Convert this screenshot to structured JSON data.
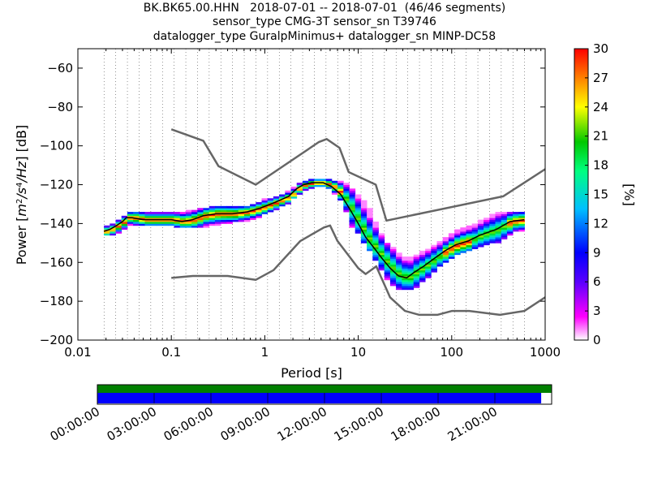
{
  "title": {
    "line1": "BK.BK65.00.HHN   2018-07-01 -- 2018-07-01  (46/46 segments)",
    "line2": "sensor_type CMG-3T sensor_sn T39746",
    "line3": "datalogger_type GuralpMinimus+ datalogger_sn MINP-DC58"
  },
  "chart_data": {
    "type": "heatmap",
    "xlabel": "Period [s]",
    "ylabel_parts": [
      "Power [",
      "m",
      "2",
      "/",
      "s",
      "4",
      "/",
      "Hz",
      "] [dB]"
    ],
    "x_scale": "log",
    "xlim": [
      0.01,
      1000
    ],
    "ylim": [
      -200,
      -50
    ],
    "x_ticks": [
      0.01,
      0.1,
      1,
      10,
      100,
      1000
    ],
    "x_tick_labels": [
      "0.01",
      "0.1",
      "1",
      "10",
      "100",
      "1000"
    ],
    "y_ticks": [
      -200,
      -180,
      -160,
      -140,
      -120,
      -100,
      -80,
      -60
    ],
    "y_tick_labels": [
      "−200",
      "−180",
      "−160",
      "−140",
      "−120",
      "−100",
      "−80",
      "−60"
    ],
    "grid": "dotted vertical at period bins",
    "colorbar": {
      "label": "[%]",
      "range": [
        0,
        30
      ],
      "ticks": [
        "0",
        "3",
        "6",
        "9",
        "12",
        "15",
        "18",
        "21",
        "24",
        "27",
        "30"
      ]
    },
    "mode_curve": {
      "period": [
        0.019,
        0.022,
        0.026,
        0.03,
        0.033,
        0.038,
        0.05,
        0.07,
        0.1,
        0.13,
        0.17,
        0.22,
        0.3,
        0.45,
        0.65,
        0.9,
        1.3,
        1.8,
        2.2,
        2.6,
        3.2,
        4.2,
        5.2,
        6.5,
        8.0,
        10,
        12,
        15,
        18,
        22,
        27,
        33,
        40,
        50,
        65,
        85,
        110,
        150,
        200,
        300,
        420,
        600
      ],
      "db": [
        -144,
        -143,
        -141,
        -139,
        -137,
        -137,
        -138,
        -138,
        -138,
        -139,
        -138,
        -136,
        -135,
        -135,
        -134,
        -132,
        -129,
        -126,
        -122,
        -120,
        -119,
        -119,
        -121,
        -125,
        -132,
        -140,
        -147,
        -153,
        -158,
        -163,
        -167,
        -168,
        -165,
        -162,
        -158,
        -154,
        -151,
        -149,
        -146,
        -143,
        -139,
        -138
      ]
    },
    "nlnm": {
      "period": [
        0.1,
        0.17,
        0.4,
        0.8,
        1.24,
        2.4,
        4.3,
        5.0,
        6.0,
        10.0,
        12.0,
        15.6,
        21.9,
        31.6,
        45,
        70,
        101,
        154,
        328,
        600,
        1000
      ],
      "db": [
        -168,
        -167,
        -167,
        -169,
        -164,
        -149,
        -142,
        -141,
        -149,
        -163,
        -166,
        -162,
        -178,
        -185,
        -187,
        -187,
        -185,
        -185,
        -187,
        -185,
        -178
      ]
    },
    "nhnm": {
      "period": [
        0.1,
        0.22,
        0.32,
        0.8,
        3.8,
        4.6,
        6.3,
        7.9,
        15.4,
        20,
        354.8,
        1000
      ],
      "db": [
        -91.5,
        -97.4,
        -110.5,
        -120,
        -98,
        -96.5,
        -101,
        -113.5,
        -120,
        -138.5,
        -126,
        -112
      ]
    },
    "spectral_bands": [
      {
        "period": [
          0.019,
          0.022,
          0.026,
          0.03,
          0.033,
          0.038,
          0.05,
          0.07,
          0.1,
          0.13,
          0.17,
          0.22,
          0.3,
          0.45,
          0.65,
          0.9,
          1.3,
          1.8,
          2.2,
          2.6,
          3.2,
          4.2,
          5.2,
          6.5,
          8.0,
          10,
          12,
          15,
          18,
          22,
          27,
          33,
          40,
          50,
          65,
          85,
          110,
          150,
          200,
          300,
          420,
          600
        ],
        "upper_db": [
          -141,
          -140,
          -138,
          -136,
          -134,
          -134,
          -134,
          -134,
          -134,
          -134,
          -133,
          -132,
          -131,
          -131,
          -131,
          -128,
          -126,
          -123,
          -119,
          -118,
          -117,
          -117,
          -118,
          -119,
          -122,
          -127,
          -131,
          -142,
          -149,
          -153,
          -157,
          -158,
          -156,
          -154,
          -150,
          -147,
          -143,
          -141,
          -138,
          -134,
          -134,
          -134
        ],
        "lower_db": [
          -146,
          -145,
          -144,
          -142,
          -140,
          -141,
          -141,
          -141,
          -141,
          -142,
          -142,
          -141,
          -140,
          -139,
          -138,
          -135,
          -132,
          -128,
          -124,
          -122,
          -121,
          -121,
          -124,
          -130,
          -141,
          -147,
          -153,
          -160,
          -167,
          -172,
          -174,
          -174,
          -172,
          -168,
          -163,
          -158,
          -155,
          -153,
          -151,
          -149,
          -144,
          -143
        ]
      }
    ],
    "time_axis": {
      "tick_labels": [
        "00:00:00",
        "03:00:00",
        "06:00:00",
        "09:00:00",
        "12:00:00",
        "15:00:00",
        "18:00:00",
        "21:00:00"
      ],
      "coverage_fraction": 0.977,
      "colors": {
        "available": "#008000",
        "used": "#0000ff"
      }
    }
  }
}
